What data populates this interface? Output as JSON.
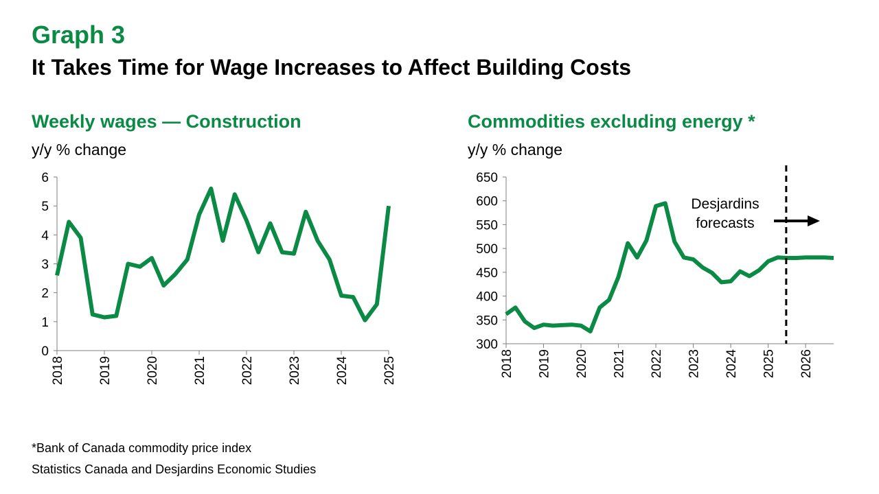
{
  "header": {
    "graph_number": "Graph 3",
    "title": "It Takes Time for Wage Increases to Affect Building Costs"
  },
  "footnotes": {
    "note": "*Bank of Canada commodity price index",
    "source": "Statistics Canada and Desjardins Economic Studies"
  },
  "colors": {
    "accent": "#0b8a45",
    "line": "#0b8a45",
    "text": "#000000"
  },
  "chart_data": [
    {
      "type": "line",
      "title": "Weekly wages — Construction",
      "ylabel": "y/y % change",
      "xlabel": "",
      "ylim": [
        0,
        6
      ],
      "yticks": [
        "0",
        "1",
        "2",
        "3",
        "4",
        "5",
        "6"
      ],
      "xlim": [
        2018,
        2025
      ],
      "xticks": [
        "2018",
        "2019",
        "2020",
        "2021",
        "2022",
        "2023",
        "2024",
        "2025"
      ],
      "grid": false,
      "series": [
        {
          "x": [
            2018.0,
            2018.25,
            2018.5,
            2018.75,
            2019.0,
            2019.25,
            2019.5,
            2019.75,
            2020.0,
            2020.25,
            2020.5,
            2020.75,
            2021.0,
            2021.25,
            2021.5,
            2021.75,
            2022.0,
            2022.25,
            2022.5,
            2022.75,
            2023.0,
            2023.25,
            2023.5,
            2023.75,
            2024.0,
            2024.25,
            2024.5,
            2024.75,
            2025.0
          ],
          "values": [
            2.6,
            4.45,
            3.9,
            1.25,
            1.15,
            1.2,
            3.0,
            2.9,
            3.2,
            2.25,
            2.65,
            3.15,
            4.7,
            5.6,
            3.8,
            5.4,
            4.5,
            3.4,
            4.4,
            3.4,
            3.35,
            4.8,
            3.8,
            3.15,
            1.9,
            1.85,
            1.05,
            1.6,
            5.0
          ]
        }
      ]
    },
    {
      "type": "line",
      "title": "Commodities excluding energy *",
      "ylabel": "y/y % change",
      "xlabel": "",
      "ylim": [
        300,
        650
      ],
      "yticks": [
        "300",
        "350",
        "400",
        "450",
        "500",
        "550",
        "600",
        "650"
      ],
      "xlim": [
        2018,
        2026.75
      ],
      "xticks": [
        "2018",
        "2019",
        "2020",
        "2021",
        "2022",
        "2023",
        "2024",
        "2025",
        "2026"
      ],
      "grid": false,
      "annotation": {
        "text_line1": "Desjardins",
        "text_line2": "forecasts",
        "forecast_start": 2025.5
      },
      "series": [
        {
          "x": [
            2018.0,
            2018.25,
            2018.5,
            2018.75,
            2019.0,
            2019.25,
            2019.5,
            2019.75,
            2020.0,
            2020.25,
            2020.5,
            2020.75,
            2021.0,
            2021.25,
            2021.5,
            2021.75,
            2022.0,
            2022.25,
            2022.5,
            2022.75,
            2023.0,
            2023.25,
            2023.5,
            2023.75,
            2024.0,
            2024.25,
            2024.5,
            2024.75,
            2025.0,
            2025.25,
            2025.5,
            2025.75,
            2026.0,
            2026.25,
            2026.5,
            2026.75
          ],
          "values": [
            362,
            376,
            347,
            333,
            340,
            338,
            339,
            340,
            338,
            326,
            376,
            392,
            440,
            511,
            481,
            517,
            589,
            595,
            514,
            481,
            477,
            460,
            449,
            429,
            431,
            452,
            442,
            454,
            473,
            481,
            480,
            480,
            481,
            481,
            481,
            480
          ]
        }
      ]
    }
  ]
}
